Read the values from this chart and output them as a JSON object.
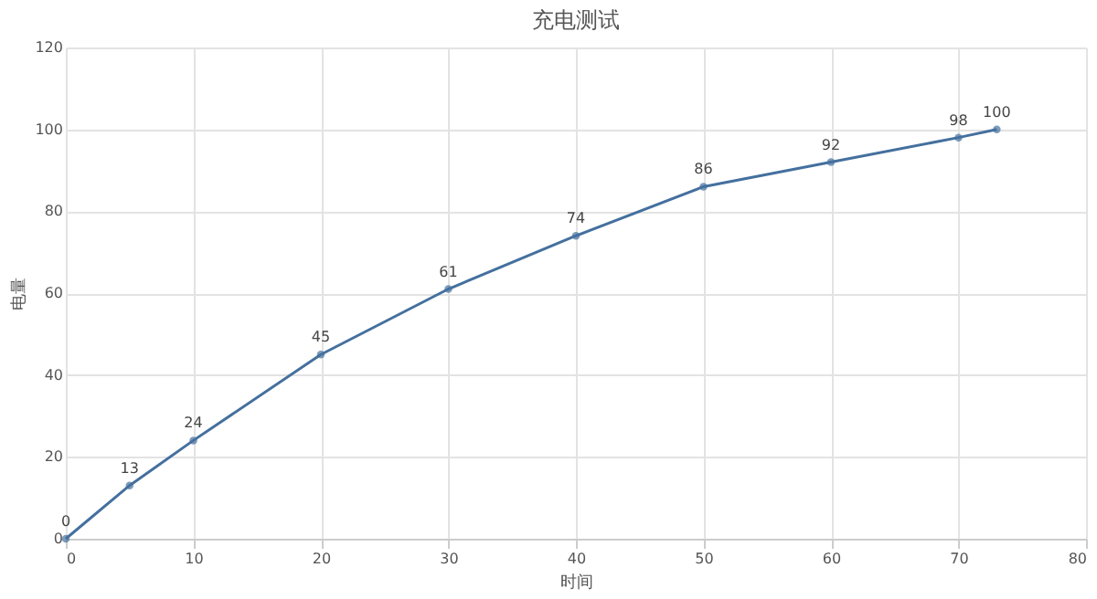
{
  "chart_data": {
    "type": "line",
    "title": "充电测试",
    "xlabel": "时间",
    "ylabel": "电量",
    "x": [
      0,
      5,
      10,
      20,
      30,
      40,
      50,
      60,
      70,
      73
    ],
    "series": [
      {
        "color": "#44709e",
        "values": [
          0,
          13,
          24,
          45,
          61,
          74,
          86,
          92,
          98,
          100
        ]
      }
    ],
    "xlim": [
      0,
      80
    ],
    "xticks": [
      0,
      10,
      20,
      30,
      40,
      50,
      60,
      70,
      80
    ],
    "ylim": [
      0,
      120
    ],
    "yticks": [
      0,
      20,
      40,
      60,
      80,
      100,
      120
    ],
    "grid": true,
    "marker": "circle",
    "line_style": "solid",
    "data_labels": true
  }
}
